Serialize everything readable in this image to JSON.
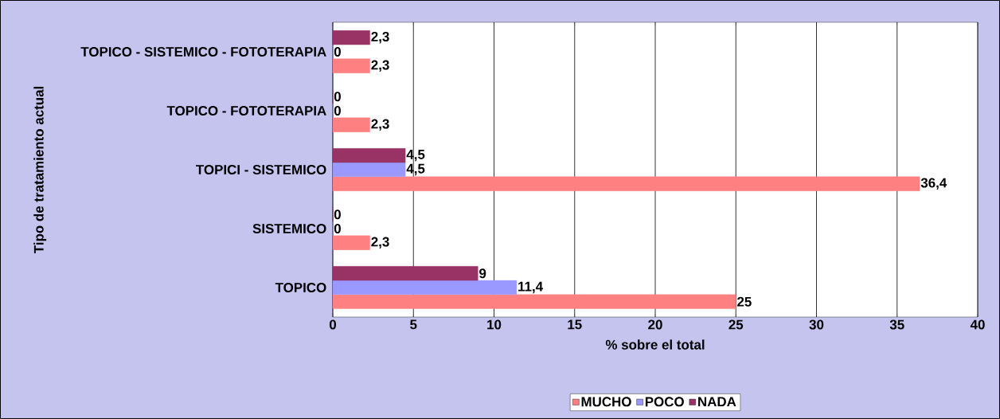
{
  "chart_data": {
    "type": "bar",
    "orientation": "horizontal",
    "xlabel": "% sobre el total",
    "ylabel": "Tipo de tratamiento actual",
    "categories": [
      "TOPICO - SISTEMICO - FOTOTERAPIA",
      "TOPICO - FOTOTERAPIA",
      "TOPICI - SISTEMICO",
      "SISTEMICO",
      "TOPICO"
    ],
    "series": [
      {
        "name": "MUCHO",
        "color": "#ff8080",
        "values": [
          2.3,
          2.3,
          36.4,
          2.3,
          25
        ],
        "value_labels": [
          "2,3",
          "2,3",
          "36,4",
          "2,3",
          "25"
        ]
      },
      {
        "name": "POCO",
        "color": "#9999ff",
        "values": [
          0,
          0,
          4.5,
          0,
          11.4
        ],
        "value_labels": [
          "0",
          "0",
          "4,5",
          "0",
          "11,4"
        ]
      },
      {
        "name": "NADA",
        "color": "#993366",
        "values": [
          2.3,
          0,
          4.5,
          0,
          9
        ],
        "value_labels": [
          "2,3",
          "0",
          "4,5",
          "0",
          "9"
        ]
      }
    ],
    "xlim": [
      0,
      40
    ],
    "xticks": [
      0,
      5,
      10,
      15,
      20,
      25,
      30,
      35,
      40
    ],
    "grid": "x",
    "legend": "bottom"
  }
}
